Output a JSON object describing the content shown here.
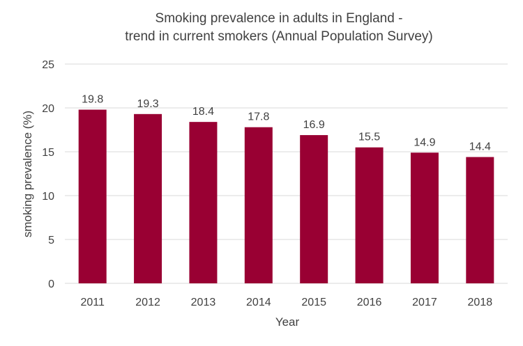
{
  "chart_data": {
    "type": "bar",
    "title_lines": [
      "Smoking prevalence in adults in England -",
      "trend in current smokers (Annual Population Survey)"
    ],
    "xlabel": "Year",
    "ylabel": "smoking prevalence (%)",
    "categories": [
      "2011",
      "2012",
      "2013",
      "2014",
      "2015",
      "2016",
      "2017",
      "2018"
    ],
    "values": [
      19.8,
      19.3,
      18.4,
      17.8,
      16.9,
      15.5,
      14.9,
      14.4
    ],
    "data_labels": [
      "19.8",
      "19.3",
      "18.4",
      "17.8",
      "16.9",
      "15.5",
      "14.9",
      "14.4"
    ],
    "ylim": [
      0,
      25
    ],
    "yticks": [
      "0",
      "5",
      "10",
      "15",
      "20",
      "25"
    ],
    "grid": true,
    "legend": "none",
    "bar_color": "#990033",
    "grid_color": "#d9d9d9",
    "text_color": "#404040"
  }
}
